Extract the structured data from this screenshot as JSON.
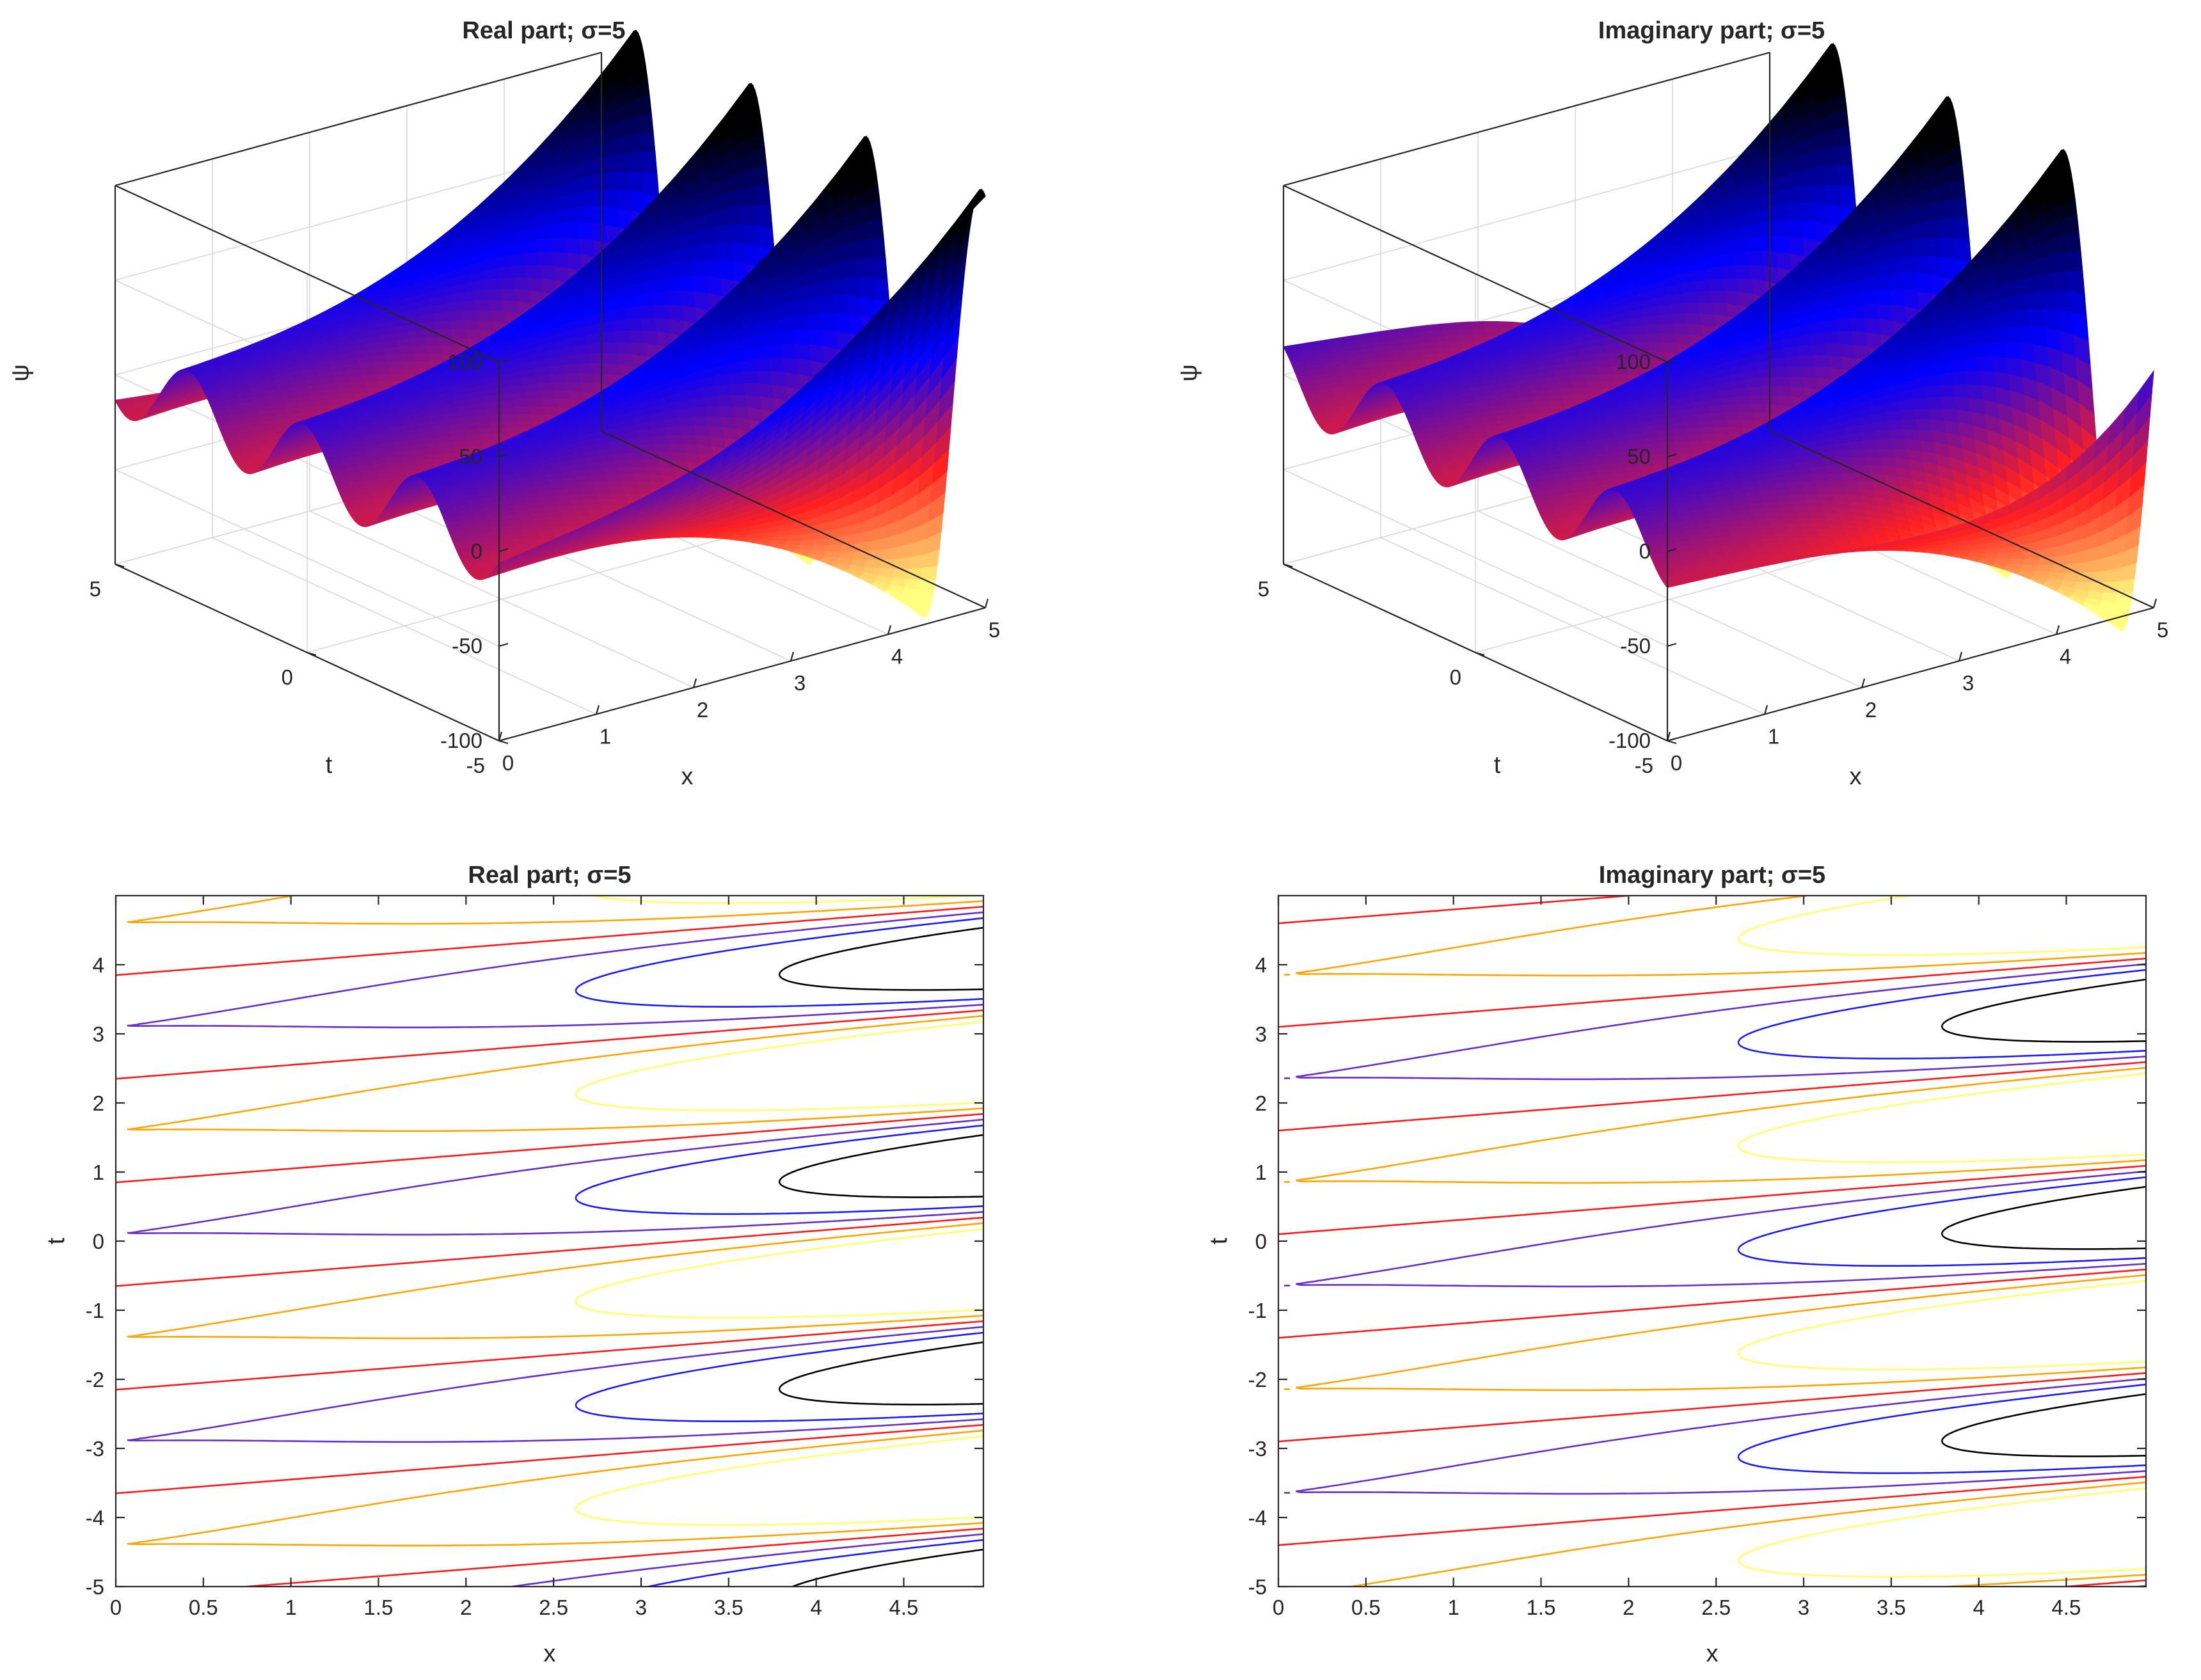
{
  "chart_data": [
    {
      "type": "surface",
      "title": "Real part; σ=5",
      "xlabel": "x",
      "ylabel": "t",
      "zlabel": "ψ",
      "xlim": [
        0,
        5
      ],
      "ylim": [
        -5,
        5
      ],
      "zlim": [
        -100,
        100
      ],
      "xticks": [
        "0",
        "1",
        "2",
        "3",
        "4",
        "5"
      ],
      "yticks": [
        "-5",
        "0",
        "5"
      ],
      "zticks": [
        "-100",
        "-50",
        "0",
        "50",
        "100"
      ],
      "grid": true,
      "colormap": [
        "#ffff80",
        "#ff2020",
        "#0000ff",
        "#000000"
      ],
      "model": {
        "amplitude_at_x5": 100,
        "period_t": 3,
        "phase_shift_per_unit_x": 0.2,
        "ridge_crest_t": [
          4.1,
          1.1,
          -1.9,
          -4.9
        ]
      }
    },
    {
      "type": "surface",
      "title": "Imaginary part; σ=5",
      "xlabel": "x",
      "ylabel": "t",
      "zlabel": "ψ",
      "xlim": [
        0,
        5
      ],
      "ylim": [
        -5,
        5
      ],
      "zlim": [
        -100,
        100
      ],
      "xticks": [
        "0",
        "1",
        "2",
        "3",
        "4",
        "5"
      ],
      "yticks": [
        "-5",
        "0",
        "5"
      ],
      "zticks": [
        "-100",
        "-50",
        "0",
        "50",
        "100"
      ],
      "grid": true,
      "colormap": [
        "#ffff80",
        "#ff2020",
        "#0000ff",
        "#000000"
      ],
      "model": {
        "amplitude_at_x5": 100,
        "period_t": 3,
        "phase_shift_per_unit_x": 0.2,
        "ridge_crest_t": [
          3.35,
          0.35,
          -2.65
        ]
      }
    },
    {
      "type": "contour",
      "title": "Real part; σ=5",
      "xlabel": "x",
      "ylabel": "t",
      "xlim": [
        0,
        5
      ],
      "ylim": [
        -5,
        5
      ],
      "xticks": [
        "0",
        "0.5",
        "1",
        "1.5",
        "2",
        "2.5",
        "3",
        "3.5",
        "4",
        "4.5"
      ],
      "yticks": [
        "-5",
        "-4",
        "-3",
        "-2",
        "-1",
        "0",
        "1",
        "2",
        "3",
        "4"
      ],
      "levels": [
        -40,
        -20,
        0,
        20,
        40
      ],
      "level_colors": [
        "#ffff66",
        "#ffa500",
        "#ff1a1a",
        "#6a2ec8",
        "#1a1aff"
      ],
      "extra_level": {
        "value": 70,
        "color": "#000000"
      },
      "model": {
        "amplitude_at_x5": 100,
        "period_t": 3,
        "phase_shift_per_unit_x": 0.2,
        "ridge_crest_t": [
          4.1,
          1.1,
          -1.9,
          -4.9
        ]
      }
    },
    {
      "type": "contour",
      "title": "Imaginary part; σ=5",
      "xlabel": "x",
      "ylabel": "t",
      "xlim": [
        0,
        5
      ],
      "ylim": [
        -5,
        5
      ],
      "xticks": [
        "0",
        "0.5",
        "1",
        "1.5",
        "2",
        "2.5",
        "3",
        "3.5",
        "4",
        "4.5"
      ],
      "yticks": [
        "-5",
        "-4",
        "-3",
        "-2",
        "-1",
        "0",
        "1",
        "2",
        "3",
        "4"
      ],
      "levels": [
        -40,
        -20,
        0,
        20,
        40
      ],
      "level_colors": [
        "#ffff66",
        "#ffa500",
        "#ff1a1a",
        "#6a2ec8",
        "#1a1aff"
      ],
      "extra_level": {
        "value": 70,
        "color": "#000000"
      },
      "model": {
        "amplitude_at_x5": 100,
        "period_t": 3,
        "phase_shift_per_unit_x": 0.2,
        "ridge_crest_t": [
          3.35,
          0.35,
          -2.65
        ]
      }
    }
  ]
}
